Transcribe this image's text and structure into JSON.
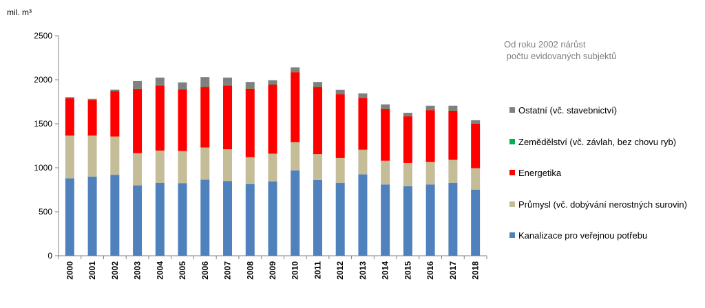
{
  "chart_data": {
    "type": "bar",
    "stacked": true,
    "unit_label": "mil. m³",
    "note_line1": "Od roku 2002 nárůst",
    "note_line2": " počtu evidovaných subjektů",
    "ylim": [
      0,
      2500
    ],
    "yticks": [
      0,
      500,
      1000,
      1500,
      2000,
      2500
    ],
    "grid": false,
    "legend_position": "right",
    "categories": [
      "2000",
      "2001",
      "2002",
      "2003",
      "2004",
      "2005",
      "2006",
      "2007",
      "2008",
      "2009",
      "2010",
      "2011",
      "2012",
      "2013",
      "2014",
      "2015",
      "2016",
      "2017",
      "2018"
    ],
    "series": [
      {
        "name": "Kanalizace pro veřejnou potřebu",
        "color": "#4f81bd",
        "values": [
          880,
          900,
          920,
          800,
          830,
          825,
          865,
          850,
          815,
          845,
          970,
          860,
          830,
          925,
          810,
          790,
          810,
          830,
          750
        ]
      },
      {
        "name": "Průmysl (vč. dobývání nerostných surovin)",
        "color": "#c4bd97",
        "values": [
          485,
          465,
          435,
          365,
          365,
          365,
          365,
          360,
          305,
          315,
          320,
          295,
          280,
          280,
          270,
          265,
          255,
          260,
          245
        ]
      },
      {
        "name": "Energetika",
        "color": "#ff0000",
        "values": [
          425,
          405,
          515,
          730,
          740,
          700,
          690,
          725,
          780,
          785,
          795,
          765,
          725,
          590,
          590,
          530,
          590,
          560,
          505
        ]
      },
      {
        "name": "Zemědělství (vč. závlah, bez chovu ryb)",
        "color": "#00b050",
        "values": [
          5,
          5,
          5,
          5,
          5,
          5,
          5,
          5,
          5,
          5,
          5,
          5,
          5,
          5,
          5,
          5,
          5,
          5,
          5
        ]
      },
      {
        "name": "Ostatní (vč. stavebnictví)",
        "color": "#808080",
        "values": [
          8,
          8,
          12,
          85,
          85,
          75,
          105,
          85,
          70,
          45,
          50,
          50,
          45,
          45,
          45,
          35,
          45,
          50,
          35
        ]
      }
    ],
    "legend_order": [
      4,
      3,
      2,
      1,
      0
    ]
  }
}
